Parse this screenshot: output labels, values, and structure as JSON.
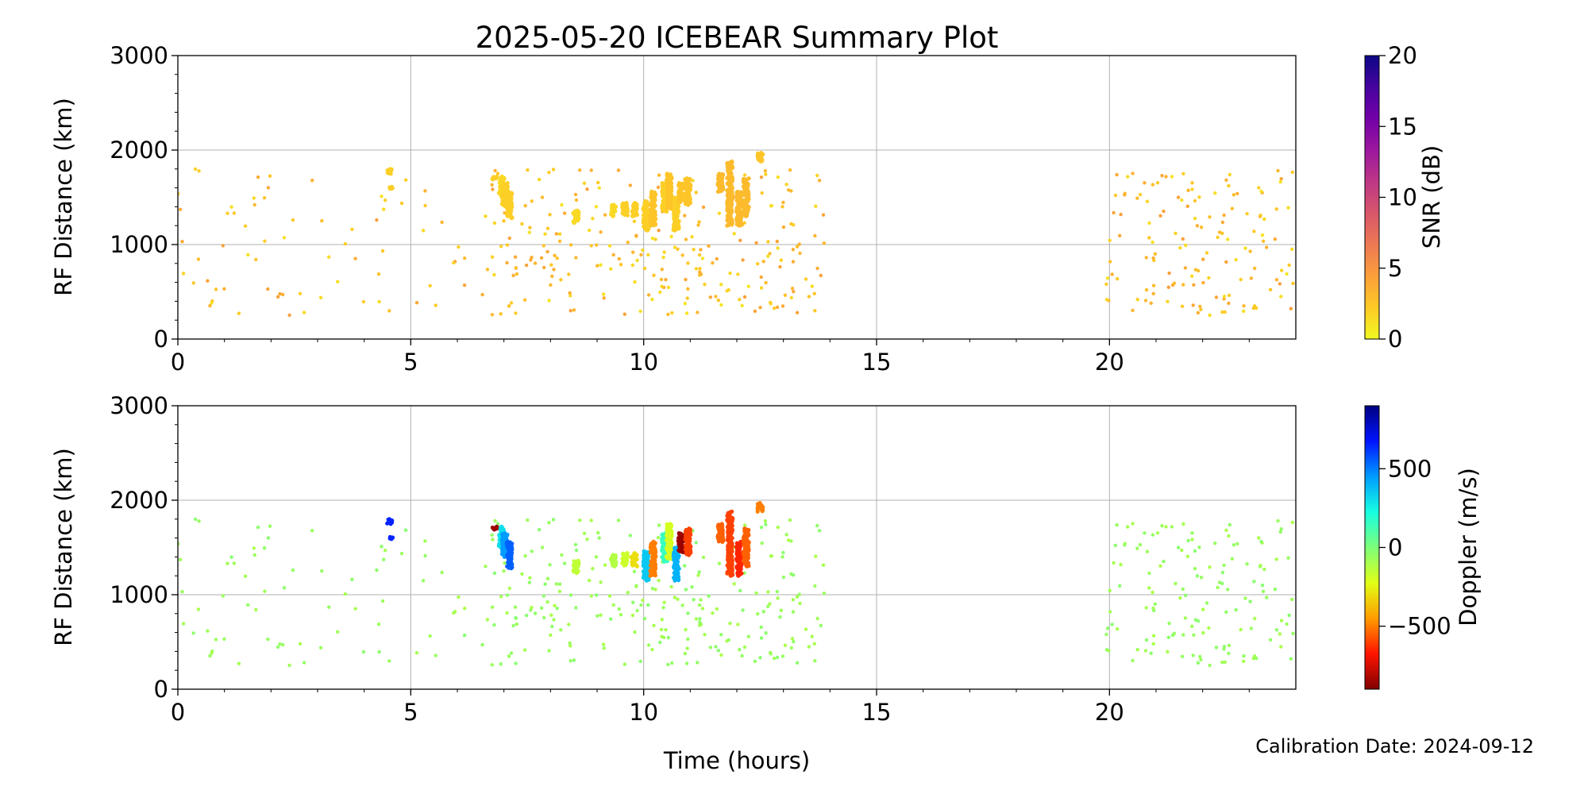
{
  "figure": {
    "title": "2025-05-20 ICEBEAR Summary Plot",
    "xlabel": "Time (hours)",
    "calibration": "Calibration Date: 2024-09-12"
  },
  "chart_data": [
    {
      "type": "scatter",
      "name": "snr",
      "ylabel": "RF Distance (km)",
      "xlim": [
        0,
        24
      ],
      "ylim": [
        0,
        3000
      ],
      "xticks": [
        0,
        5,
        10,
        15,
        20
      ],
      "yticks": [
        0,
        1000,
        2000,
        3000
      ],
      "grid": true,
      "color_by": "SNR",
      "colorbar": {
        "label": "SNR (dB)",
        "range": [
          0,
          20
        ],
        "ticks": [
          0,
          5,
          10,
          15,
          20
        ],
        "tick_labels": [
          "0",
          "5",
          "10",
          "15",
          "20"
        ],
        "colormap": "plasma_r",
        "colors": [
          "#f0f921",
          "#fdca26",
          "#fb9f3a",
          "#ed7953",
          "#d8576b",
          "#bd3786",
          "#9c179e",
          "#7201a8",
          "#46039f",
          "#0d0887"
        ]
      }
    },
    {
      "type": "scatter",
      "name": "doppler",
      "ylabel": "RF Distance (km)",
      "xlim": [
        0,
        24
      ],
      "ylim": [
        0,
        3000
      ],
      "xticks": [
        0,
        5,
        10,
        15,
        20
      ],
      "yticks": [
        0,
        1000,
        2000,
        3000
      ],
      "grid": true,
      "color_by": "Doppler",
      "colorbar": {
        "label": "Doppler (m/s)",
        "range": [
          -900,
          900
        ],
        "ticks": [
          500,
          0,
          -500
        ],
        "tick_labels": [
          "500",
          "0",
          "−500"
        ],
        "colormap": "jet_r",
        "colors": [
          "#800000",
          "#ff1400",
          "#ff9c00",
          "#e0ff16",
          "#7dff7a",
          "#16ffe1",
          "#009cff",
          "#0014ff",
          "#000080"
        ]
      }
    }
  ],
  "events": [
    {
      "t": 6.95,
      "d0": 1500,
      "d1": 1720,
      "snr": 1.5,
      "dop": 300
    },
    {
      "t": 7.02,
      "d0": 1400,
      "d1": 1650,
      "snr": 2,
      "dop": 450
    },
    {
      "t": 7.12,
      "d0": 1280,
      "d1": 1560,
      "snr": 2,
      "dop": 550
    },
    {
      "t": 8.55,
      "d0": 1230,
      "d1": 1360,
      "snr": 1.5,
      "dop": -150
    },
    {
      "t": 9.35,
      "d0": 1300,
      "d1": 1420,
      "snr": 1.5,
      "dop": -120
    },
    {
      "t": 9.6,
      "d0": 1310,
      "d1": 1440,
      "snr": 2,
      "dop": -180
    },
    {
      "t": 9.8,
      "d0": 1300,
      "d1": 1440,
      "snr": 2,
      "dop": -300
    },
    {
      "t": 10.05,
      "d0": 1150,
      "d1": 1460,
      "snr": 2,
      "dop": 350
    },
    {
      "t": 10.2,
      "d0": 1200,
      "d1": 1560,
      "snr": 2.5,
      "dop": -500
    },
    {
      "t": 10.45,
      "d0": 1350,
      "d1": 1650,
      "snr": 2,
      "dop": 150
    },
    {
      "t": 10.55,
      "d0": 1380,
      "d1": 1750,
      "snr": 2.5,
      "dop": -200
    },
    {
      "t": 10.7,
      "d0": 1150,
      "d1": 1500,
      "snr": 2,
      "dop": 400
    },
    {
      "t": 10.8,
      "d0": 1450,
      "d1": 1650,
      "snr": 2.5,
      "dop": -850
    },
    {
      "t": 10.95,
      "d0": 1420,
      "d1": 1700,
      "snr": 2.5,
      "dop": -600
    },
    {
      "t": 11.65,
      "d0": 1560,
      "d1": 1750,
      "snr": 3,
      "dop": -550
    },
    {
      "t": 11.85,
      "d0": 1200,
      "d1": 1880,
      "snr": 3,
      "dop": -600
    },
    {
      "t": 12.05,
      "d0": 1200,
      "d1": 1560,
      "snr": 3,
      "dop": -650
    },
    {
      "t": 12.2,
      "d0": 1300,
      "d1": 1700,
      "snr": 3,
      "dop": -550
    },
    {
      "t": 12.5,
      "d0": 1880,
      "d1": 1970,
      "snr": 2.5,
      "dop": -500
    },
    {
      "t": 4.55,
      "d0": 1750,
      "d1": 1800,
      "snr": 2,
      "dop": 650
    },
    {
      "t": 4.58,
      "d0": 1590,
      "d1": 1610,
      "snr": 2,
      "dop": 650
    },
    {
      "t": 6.8,
      "d0": 1690,
      "d1": 1720,
      "snr": 2,
      "dop": -850
    }
  ]
}
